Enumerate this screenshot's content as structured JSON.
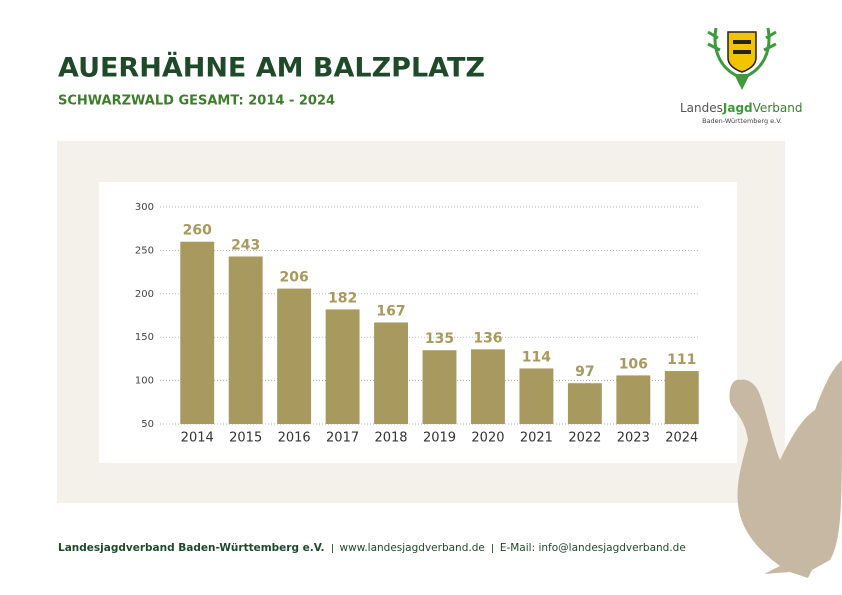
{
  "header": {
    "title": "AUERHÄHNE AM BALZPLATZ",
    "subtitle": "SCHWARZWALD GESAMT: 2014 - 2024"
  },
  "logo": {
    "name_parts": [
      "Landes",
      "Jagd",
      "Verband"
    ],
    "region": "Baden-Württemberg e.V."
  },
  "footer": {
    "items": [
      "Landesjagdverband Baden-Württemberg e.V.",
      "www.landesjagdverband.de",
      "E-Mail: info@landesjagdverband.de"
    ]
  },
  "chart_data": {
    "type": "bar",
    "categories": [
      "2014",
      "2015",
      "2016",
      "2017",
      "2018",
      "2019",
      "2020",
      "2021",
      "2022",
      "2023",
      "2024"
    ],
    "values": [
      260,
      243,
      206,
      182,
      167,
      135,
      136,
      114,
      97,
      106,
      111
    ],
    "color": "#a8995f",
    "ylim": [
      50,
      300
    ],
    "yticks": [
      50,
      100,
      150,
      200,
      250,
      300
    ],
    "grid": true
  }
}
